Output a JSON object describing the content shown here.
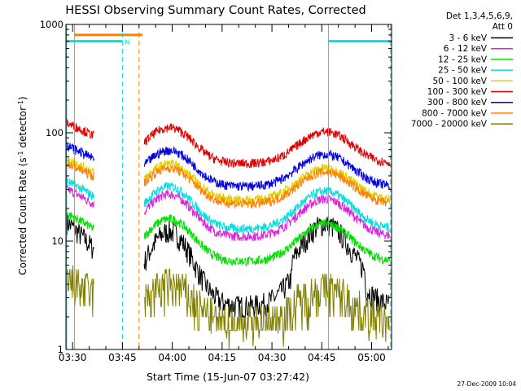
{
  "chart_data": {
    "type": "line",
    "title": "HESSI Observing Summary Count Rates, Corrected",
    "xlabel": "Start Time (15-Jun-07 03:27:42)",
    "ylabel_main": "Corrected Count Rate (s",
    "ylabel_sup1": "-1",
    "ylabel_mid": " detector",
    "ylabel_sup2": "-1",
    "ylabel_end": ")",
    "y_scale": "log",
    "ylim": [
      1,
      1000
    ],
    "xlim_min": [
      208,
      306
    ],
    "y_ticks": [
      "1",
      "10",
      "100",
      "1000"
    ],
    "x_ticks": [
      {
        "min": 210,
        "label": "03:30"
      },
      {
        "min": 225,
        "label": "03:45"
      },
      {
        "min": 240,
        "label": "04:00"
      },
      {
        "min": 255,
        "label": "04:15"
      },
      {
        "min": 270,
        "label": "04:30"
      },
      {
        "min": 285,
        "label": "04:45"
      },
      {
        "min": 300,
        "label": "05:00"
      }
    ],
    "legend_header": [
      "Det 1,3,4,5,6,9,",
      "Att 0"
    ],
    "series": [
      {
        "name": "3 - 6 keV",
        "color": "#000000",
        "base": 2.5,
        "amp": 1.9
      },
      {
        "name": "6 - 12 keV",
        "color": "#e020e0",
        "base": 11,
        "amp": 1.0
      },
      {
        "name": "12 - 25 keV",
        "color": "#00e000",
        "base": 6.5,
        "amp": 1.0
      },
      {
        "name": "25 - 50 keV",
        "color": "#00e0e0",
        "base": 13,
        "amp": 1.0
      },
      {
        "name": "50 - 100 keV",
        "color": "#e0d000",
        "base": 24,
        "amp": 0.85
      },
      {
        "name": "100 - 300 keV",
        "color": "#e00000",
        "base": 52,
        "amp": 0.85
      },
      {
        "name": "300 - 800 keV",
        "color": "#0000e0",
        "base": 32,
        "amp": 0.85
      },
      {
        "name": "800 - 7000 keV",
        "color": "#ff8000",
        "base": 22,
        "amp": 0.85
      },
      {
        "name": "7000 - 20000 keV",
        "color": "#808000",
        "base": 1.8,
        "amp": 1.2
      }
    ],
    "gaps_min": [
      [
        216.5,
        231.5
      ]
    ],
    "saa_bar": {
      "start_min": 210.5,
      "end_min": 231,
      "value": 800,
      "color": "#ff8000"
    },
    "night_bars": [
      {
        "start_min": 208,
        "end_min": 225,
        "value": 700,
        "color": "#00e0e0",
        "label": "N"
      },
      {
        "start_min": 287,
        "end_min": 306,
        "value": 700,
        "color": "#00e0e0",
        "label": ""
      }
    ],
    "vlines": [
      {
        "min": 208.2,
        "color": "#00e0e0",
        "dash": false
      },
      {
        "min": 210.6,
        "color": "#ff8000",
        "dash": false
      },
      {
        "min": 225.0,
        "color": "#00e0e0",
        "dash": true
      },
      {
        "min": 230.0,
        "color": "#ff8000",
        "dash": true
      },
      {
        "min": 287.0,
        "color": "#00e0e0",
        "dash": false
      },
      {
        "min": 305.7,
        "color": "#00e0e0",
        "dash": true
      }
    ]
  },
  "footer": {
    "timestamp": "27-Dec-2009 10:04"
  }
}
